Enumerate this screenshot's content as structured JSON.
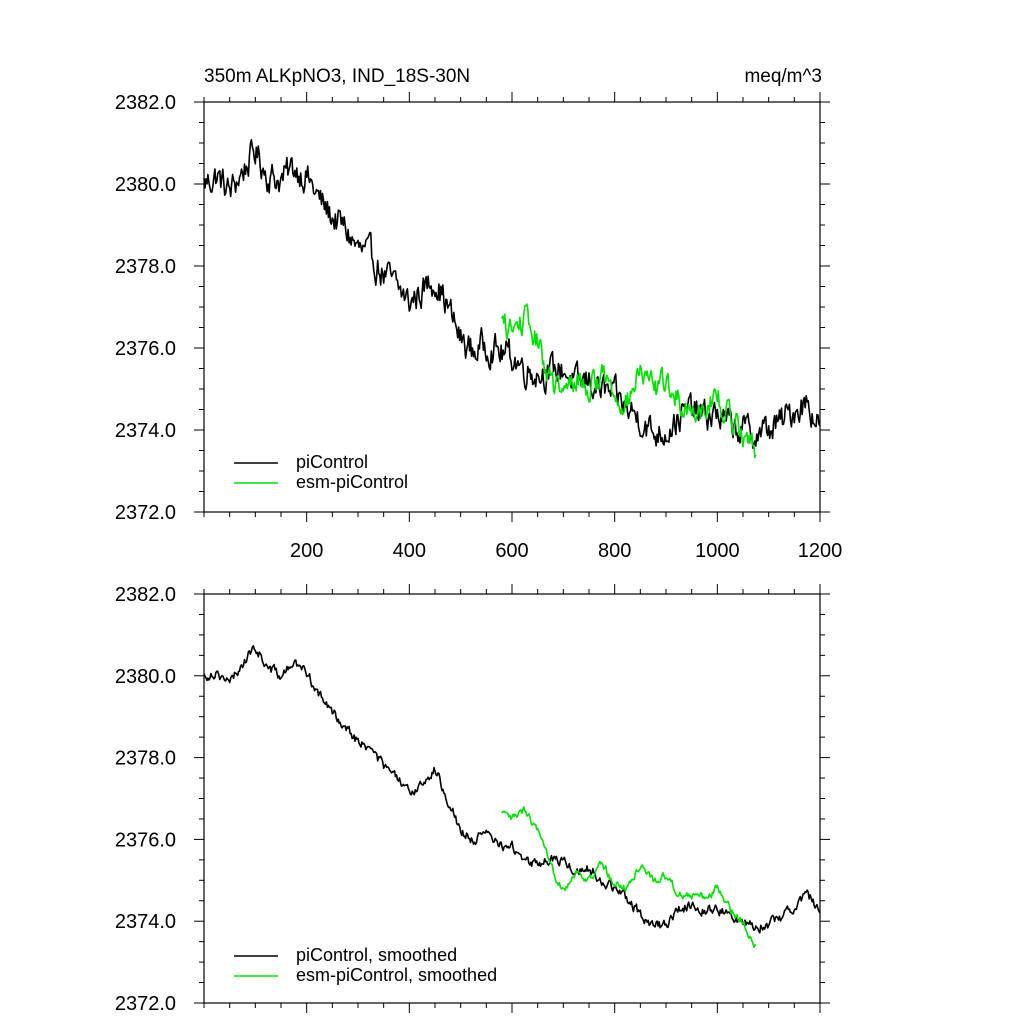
{
  "chart_data": [
    {
      "type": "line",
      "title": "350m ALKpNO3, IND_18S-30N",
      "units": "meq/m^3",
      "xlim": [
        0,
        1200
      ],
      "ylim": [
        2372,
        2382
      ],
      "x_ticks": [
        200,
        400,
        600,
        800,
        1000,
        1200
      ],
      "y_ticks": [
        "2372.0",
        "2374.0",
        "2376.0",
        "2378.0",
        "2380.0",
        "2382.0"
      ],
      "series": [
        {
          "name": "piControl",
          "color": "#000000",
          "noise": 0.35,
          "x": [
            0,
            25,
            50,
            75,
            100,
            125,
            150,
            175,
            200,
            225,
            250,
            275,
            300,
            325,
            350,
            375,
            400,
            425,
            450,
            475,
            500,
            525,
            550,
            575,
            600,
            625,
            650,
            675,
            700,
            725,
            750,
            775,
            800,
            825,
            850,
            875,
            900,
            925,
            950,
            975,
            1000,
            1025,
            1050,
            1075,
            1100,
            1125,
            1150,
            1175,
            1200
          ],
          "values": [
            2380.0,
            2380.2,
            2379.8,
            2380.3,
            2380.8,
            2380.2,
            2380.1,
            2380.4,
            2380.2,
            2379.6,
            2379.2,
            2378.9,
            2378.4,
            2378.2,
            2377.8,
            2377.5,
            2377.1,
            2377.4,
            2377.7,
            2377.0,
            2376.2,
            2375.9,
            2376.1,
            2375.9,
            2375.8,
            2375.5,
            2375.4,
            2375.4,
            2375.5,
            2375.1,
            2375.2,
            2375.0,
            2374.8,
            2374.5,
            2374.3,
            2373.9,
            2374.0,
            2374.3,
            2374.5,
            2374.3,
            2374.4,
            2374.1,
            2374.0,
            2373.9,
            2374.0,
            2374.2,
            2374.5,
            2374.7,
            2374.1
          ]
        },
        {
          "name": "esm-piControl",
          "color": "#00e000",
          "noise": 0.3,
          "x": [
            580,
            600,
            625,
            650,
            675,
            700,
            725,
            750,
            775,
            800,
            825,
            850,
            875,
            900,
            925,
            950,
            975,
            1000,
            1025,
            1050,
            1075
          ],
          "values": [
            2376.6,
            2376.4,
            2376.7,
            2376.1,
            2375.2,
            2374.8,
            2375.3,
            2375.0,
            2375.4,
            2374.9,
            2374.7,
            2375.4,
            2375.0,
            2375.2,
            2374.7,
            2374.5,
            2374.6,
            2374.8,
            2374.3,
            2374.0,
            2373.4
          ]
        }
      ]
    },
    {
      "type": "line",
      "title": "",
      "xlim": [
        0,
        1200
      ],
      "ylim": [
        2372,
        2382
      ],
      "y_ticks": [
        "2372.0",
        "2374.0",
        "2376.0",
        "2378.0",
        "2380.0",
        "2382.0"
      ],
      "series": [
        {
          "name": "piControl, smoothed",
          "color": "#000000",
          "noise": 0.12,
          "x": [
            0,
            25,
            50,
            75,
            100,
            125,
            150,
            175,
            200,
            225,
            250,
            275,
            300,
            325,
            350,
            375,
            400,
            425,
            450,
            475,
            500,
            525,
            550,
            575,
            600,
            625,
            650,
            675,
            700,
            725,
            750,
            775,
            800,
            825,
            850,
            875,
            900,
            925,
            950,
            975,
            1000,
            1025,
            1050,
            1075,
            1100,
            1125,
            1150,
            1175,
            1200
          ],
          "values": [
            2380.0,
            2380.1,
            2379.8,
            2380.3,
            2380.7,
            2380.2,
            2380.0,
            2380.3,
            2380.1,
            2379.5,
            2379.1,
            2378.8,
            2378.4,
            2378.2,
            2377.8,
            2377.5,
            2377.1,
            2377.4,
            2377.7,
            2377.0,
            2376.2,
            2376.0,
            2376.1,
            2375.9,
            2375.8,
            2375.5,
            2375.4,
            2375.5,
            2375.5,
            2375.2,
            2375.3,
            2375.0,
            2374.8,
            2374.5,
            2374.2,
            2373.9,
            2373.9,
            2374.3,
            2374.4,
            2374.3,
            2374.3,
            2374.1,
            2374.0,
            2373.9,
            2373.9,
            2374.1,
            2374.4,
            2374.7,
            2374.2
          ]
        },
        {
          "name": "esm-piControl, smoothed",
          "color": "#00e000",
          "noise": 0.1,
          "x": [
            580,
            600,
            625,
            650,
            675,
            700,
            725,
            750,
            775,
            800,
            825,
            850,
            875,
            900,
            925,
            950,
            975,
            1000,
            1025,
            1050,
            1075
          ],
          "values": [
            2376.6,
            2376.5,
            2376.7,
            2376.2,
            2375.3,
            2374.8,
            2375.2,
            2375.0,
            2375.4,
            2374.9,
            2374.8,
            2375.4,
            2375.0,
            2375.1,
            2374.7,
            2374.6,
            2374.6,
            2374.8,
            2374.3,
            2374.0,
            2373.4
          ]
        }
      ]
    }
  ]
}
